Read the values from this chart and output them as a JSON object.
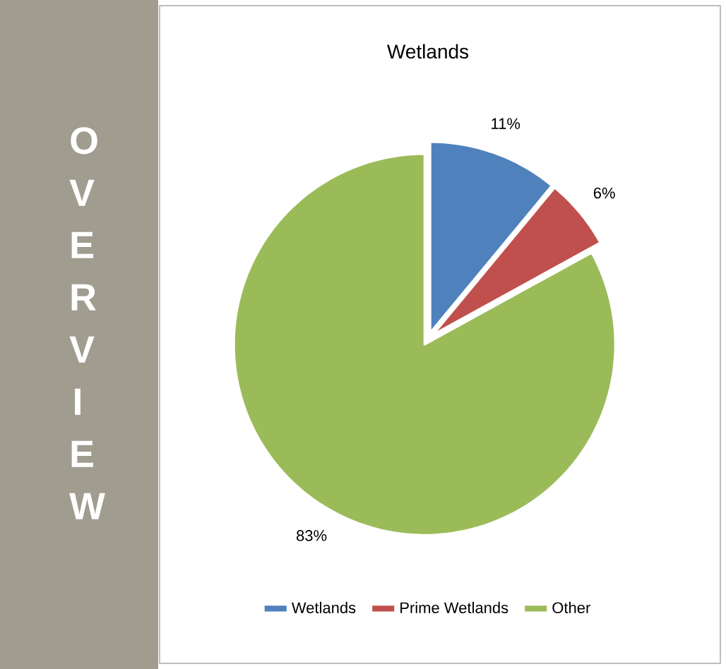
{
  "chart_data": {
    "type": "pie",
    "title": "Wetlands",
    "categories": [
      "Wetlands",
      "Prime Wetlands",
      "Other"
    ],
    "values": [
      11,
      6,
      83
    ],
    "colors": [
      "#4f81bd",
      "#c0504d",
      "#9bbb59"
    ],
    "value_labels": [
      "11%",
      "6%",
      "83%"
    ],
    "legend": "bottom",
    "annotations": [
      "O V E R V I E W"
    ]
  }
}
